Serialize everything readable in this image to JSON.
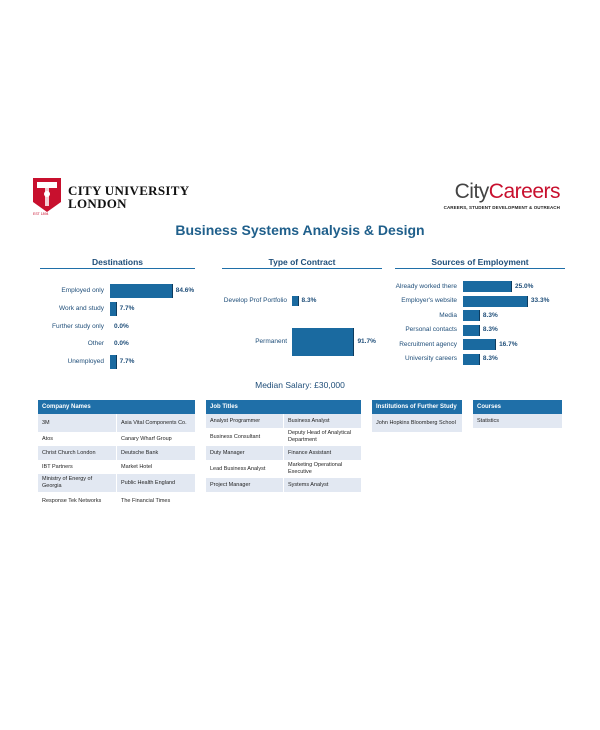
{
  "header": {
    "university_line1": "CITY UNIVERSITY",
    "university_line2": "LONDON",
    "crest_text": "EST 1894",
    "brand_city": "City",
    "brand_careers": "Careers",
    "brand_sub": "CAREERS, STUDENT DEVELOPMENT & OUTREACH"
  },
  "title": "Business Systems Analysis & Design",
  "colors": {
    "accent": "#1f6fa8",
    "bar": "#1a6aa0",
    "brand_red": "#c8102e",
    "row_alt": "#e2e8f2"
  },
  "chart_data": [
    {
      "type": "bar",
      "orientation": "horizontal",
      "title": "Destinations",
      "categories": [
        "Employed only",
        "Work and study",
        "Further study only",
        "Other",
        "Unemployed"
      ],
      "values": [
        84.6,
        7.7,
        0.0,
        0.0,
        7.7
      ],
      "labels": [
        "84.6%",
        "7.7%",
        "0.0%",
        "0.0%",
        "7.7%"
      ]
    },
    {
      "type": "bar",
      "orientation": "horizontal",
      "title": "Type of Contract",
      "categories": [
        "Develop Prof Portfolio",
        "Permanent"
      ],
      "values": [
        8.3,
        91.7
      ],
      "labels": [
        "8.3%",
        "91.7%"
      ]
    },
    {
      "type": "bar",
      "orientation": "horizontal",
      "title": "Sources of Employment",
      "categories": [
        "Already worked there",
        "Employer's website",
        "Media",
        "Personal contacts",
        "Recruitment agency",
        "University careers"
      ],
      "values": [
        25.0,
        33.3,
        8.3,
        8.3,
        16.7,
        8.3
      ],
      "labels": [
        "25.0%",
        "33.3%",
        "8.3%",
        "8.3%",
        "16.7%",
        "8.3%"
      ]
    }
  ],
  "median_salary": "Median Salary: £30,000",
  "tables": {
    "companies": {
      "header": "Company Names",
      "rows": [
        [
          "3M",
          "Asia Vital Components Co."
        ],
        [
          "Atos",
          "Canary Wharf Group"
        ],
        [
          "Christ Church London",
          "Deutsche Bank"
        ],
        [
          "IBT Partners",
          "Market Hotel"
        ],
        [
          "Ministry of Energy of Georgia",
          "Public Health England"
        ],
        [
          "Response Tek Networks",
          "The Financial Times"
        ]
      ]
    },
    "jobs": {
      "header": "Job Titles",
      "rows": [
        [
          "Analyst Programmer",
          "Business Analyst"
        ],
        [
          "Business Consultant",
          "Deputy Head of Analytical Department"
        ],
        [
          "Duty Manager",
          "Finance Assistant"
        ],
        [
          "Lead Business Analyst",
          "Marketing Operational Executive"
        ],
        [
          "Project Manager",
          "Systems Analyst"
        ]
      ]
    },
    "institutions": {
      "header": "Institutions of Further Study",
      "rows": [
        [
          "John Hopkins Bloomberg School"
        ]
      ]
    },
    "courses": {
      "header": "Courses",
      "rows": [
        [
          "Statistics"
        ]
      ]
    }
  }
}
